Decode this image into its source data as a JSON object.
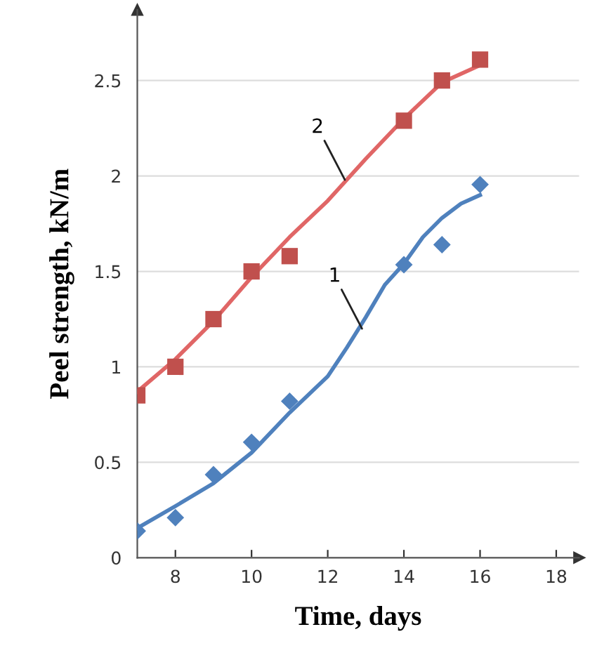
{
  "chart_data": {
    "type": "scatter",
    "xlabel": "Time, days",
    "ylabel": "Peel strength, kN/m",
    "xlim": [
      7,
      18.6
    ],
    "ylim": [
      0,
      2.87
    ],
    "xticks": [
      8,
      10,
      12,
      14,
      16,
      18
    ],
    "yticks": [
      0,
      0.5,
      1,
      1.5,
      2,
      2.5
    ],
    "grid": "y",
    "series": [
      {
        "type": "line",
        "color": "#4f81bd",
        "marker": "none",
        "x": [
          7,
          8,
          9,
          10,
          11,
          12,
          12.5,
          13,
          13.5,
          14,
          14.5,
          15,
          15.5,
          16
        ],
        "values": [
          0.155,
          0.27,
          0.39,
          0.55,
          0.76,
          0.95,
          1.1,
          1.26,
          1.43,
          1.54,
          1.68,
          1.78,
          1.855,
          1.9
        ]
      },
      {
        "type": "line",
        "color": "#e06666",
        "marker": "none",
        "x": [
          7,
          8,
          9,
          10,
          11,
          12,
          13,
          14,
          15,
          16
        ],
        "values": [
          0.87,
          1.04,
          1.24,
          1.47,
          1.68,
          1.87,
          2.09,
          2.3,
          2.49,
          2.58
        ]
      },
      {
        "color": "#4f81bd",
        "marker": "diamond",
        "x": [
          7,
          8,
          9,
          10,
          11,
          14,
          15,
          16
        ],
        "values": [
          0.14,
          0.21,
          0.435,
          0.605,
          0.82,
          1.535,
          1.64,
          1.955
        ]
      },
      {
        "color": "#c0504d",
        "marker": "square",
        "x": [
          7,
          8,
          9,
          10,
          11,
          14,
          15,
          16
        ],
        "values": [
          0.85,
          1.0,
          1.25,
          1.5,
          1.58,
          2.29,
          2.5,
          2.61
        ]
      }
    ],
    "annotations": [
      {
        "text": "1",
        "x": 12.9,
        "y": 1.2
      },
      {
        "text": "2",
        "x": 12.45,
        "y": 1.98
      }
    ]
  }
}
